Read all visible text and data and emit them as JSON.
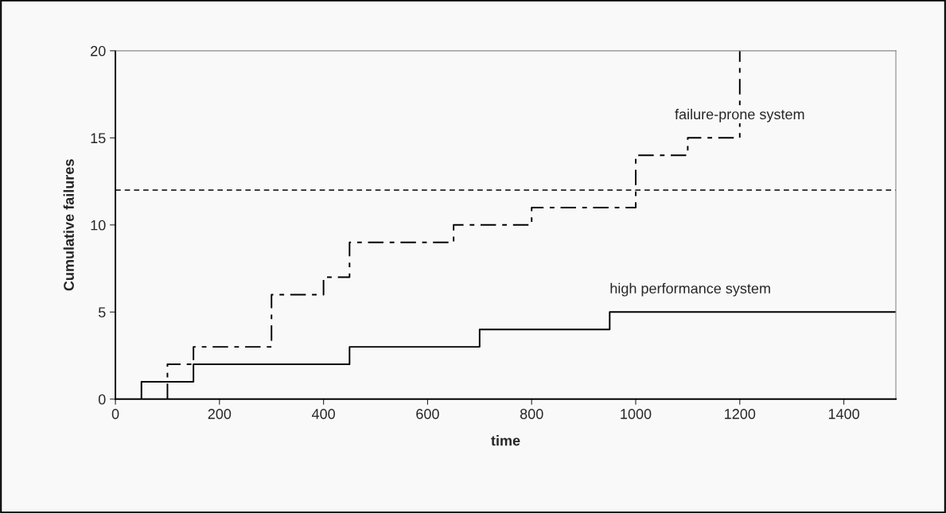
{
  "chart_data": {
    "type": "step",
    "xlabel": "time",
    "ylabel": "Cumulative failures",
    "xlim": [
      0,
      1500
    ],
    "xticks": [
      0,
      200,
      400,
      600,
      800,
      1000,
      1200,
      1400
    ],
    "ylim": [
      0,
      20
    ],
    "yticks": [
      0,
      5,
      10,
      15,
      20
    ],
    "grid": false,
    "legend": false,
    "series": [
      {
        "name": "failure-prone system",
        "color": "#000000",
        "line_style": "dashdot",
        "x": [
          100,
          100,
          150,
          300,
          400,
          450,
          650,
          800,
          1000,
          1100,
          1200,
          1200
        ],
        "values": [
          0,
          2,
          3,
          6,
          7,
          9,
          10,
          11,
          14,
          15,
          15,
          20
        ]
      },
      {
        "name": "high performance system",
        "color": "#000000",
        "line_style": "solid",
        "x": [
          50,
          50,
          150,
          450,
          700,
          950,
          1500
        ],
        "values": [
          0,
          1,
          2,
          3,
          4,
          5,
          5
        ]
      }
    ],
    "ref_lines": [
      {
        "axis": "y",
        "value": 12,
        "color": "#000000",
        "line_style": "dashed"
      }
    ]
  }
}
